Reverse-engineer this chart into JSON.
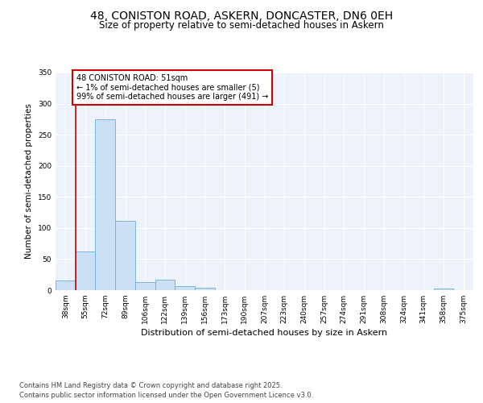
{
  "title_line1": "48, CONISTON ROAD, ASKERN, DONCASTER, DN6 0EH",
  "title_line2": "Size of property relative to semi-detached houses in Askern",
  "xlabel": "Distribution of semi-detached houses by size in Askern",
  "ylabel": "Number of semi-detached properties",
  "categories": [
    "38sqm",
    "55sqm",
    "72sqm",
    "89sqm",
    "106sqm",
    "122sqm",
    "139sqm",
    "156sqm",
    "173sqm",
    "190sqm",
    "207sqm",
    "223sqm",
    "240sqm",
    "257sqm",
    "274sqm",
    "291sqm",
    "308sqm",
    "324sqm",
    "341sqm",
    "358sqm",
    "375sqm"
  ],
  "values": [
    15,
    62,
    275,
    112,
    13,
    17,
    6,
    4,
    0,
    0,
    0,
    0,
    0,
    0,
    0,
    0,
    0,
    0,
    0,
    2,
    0
  ],
  "bar_color": "#cce0f5",
  "bar_edge_color": "#6baed6",
  "subject_vline_x": 0.5,
  "subject_vline_color": "#cc0000",
  "annotation_title": "48 CONISTON ROAD: 51sqm",
  "annotation_line1": "← 1% of semi-detached houses are smaller (5)",
  "annotation_line2": "99% of semi-detached houses are larger (491) →",
  "annotation_box_facecolor": "#ffffff",
  "annotation_box_edgecolor": "#cc0000",
  "footer_line1": "Contains HM Land Registry data © Crown copyright and database right 2025.",
  "footer_line2": "Contains public sector information licensed under the Open Government Licence v3.0.",
  "ylim": [
    0,
    350
  ],
  "yticks": [
    0,
    50,
    100,
    150,
    200,
    250,
    300,
    350
  ],
  "bg_color": "#eef3fb",
  "grid_color": "#ffffff",
  "title1_fontsize": 10,
  "title2_fontsize": 8.5,
  "ylabel_fontsize": 7.5,
  "xlabel_fontsize": 8,
  "tick_fontsize": 6.5,
  "annotation_fontsize": 7,
  "footer_fontsize": 6
}
